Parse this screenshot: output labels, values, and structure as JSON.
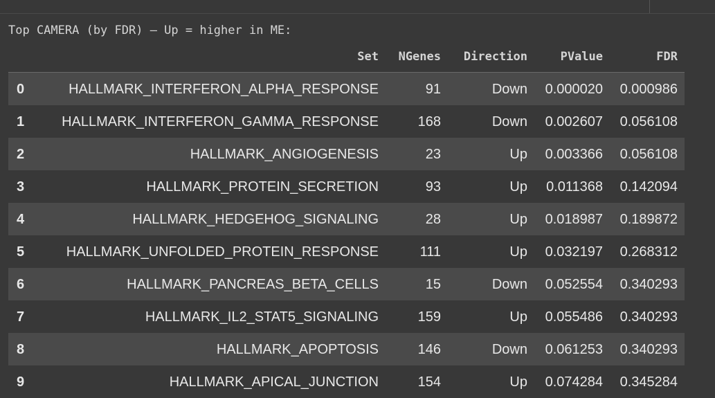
{
  "caption": "Top CAMERA (by FDR) — Up = higher in ME:",
  "table": {
    "headers": {
      "set": "Set",
      "ngenes": "NGenes",
      "direction": "Direction",
      "pvalue": "PValue",
      "fdr": "FDR"
    },
    "rows": [
      {
        "idx": "0",
        "set": "HALLMARK_INTERFERON_ALPHA_RESPONSE",
        "ngenes": "91",
        "direction": "Down",
        "pvalue": "0.000020",
        "fdr": "0.000986"
      },
      {
        "idx": "1",
        "set": "HALLMARK_INTERFERON_GAMMA_RESPONSE",
        "ngenes": "168",
        "direction": "Down",
        "pvalue": "0.002607",
        "fdr": "0.056108"
      },
      {
        "idx": "2",
        "set": "HALLMARK_ANGIOGENESIS",
        "ngenes": "23",
        "direction": "Up",
        "pvalue": "0.003366",
        "fdr": "0.056108"
      },
      {
        "idx": "3",
        "set": "HALLMARK_PROTEIN_SECRETION",
        "ngenes": "93",
        "direction": "Up",
        "pvalue": "0.011368",
        "fdr": "0.142094"
      },
      {
        "idx": "4",
        "set": "HALLMARK_HEDGEHOG_SIGNALING",
        "ngenes": "28",
        "direction": "Up",
        "pvalue": "0.018987",
        "fdr": "0.189872"
      },
      {
        "idx": "5",
        "set": "HALLMARK_UNFOLDED_PROTEIN_RESPONSE",
        "ngenes": "111",
        "direction": "Up",
        "pvalue": "0.032197",
        "fdr": "0.268312"
      },
      {
        "idx": "6",
        "set": "HALLMARK_PANCREAS_BETA_CELLS",
        "ngenes": "15",
        "direction": "Down",
        "pvalue": "0.052554",
        "fdr": "0.340293"
      },
      {
        "idx": "7",
        "set": "HALLMARK_IL2_STAT5_SIGNALING",
        "ngenes": "159",
        "direction": "Up",
        "pvalue": "0.055486",
        "fdr": "0.340293"
      },
      {
        "idx": "8",
        "set": "HALLMARK_APOPTOSIS",
        "ngenes": "146",
        "direction": "Down",
        "pvalue": "0.061253",
        "fdr": "0.340293"
      },
      {
        "idx": "9",
        "set": "HALLMARK_APICAL_JUNCTION",
        "ngenes": "154",
        "direction": "Up",
        "pvalue": "0.074284",
        "fdr": "0.345284"
      }
    ]
  }
}
